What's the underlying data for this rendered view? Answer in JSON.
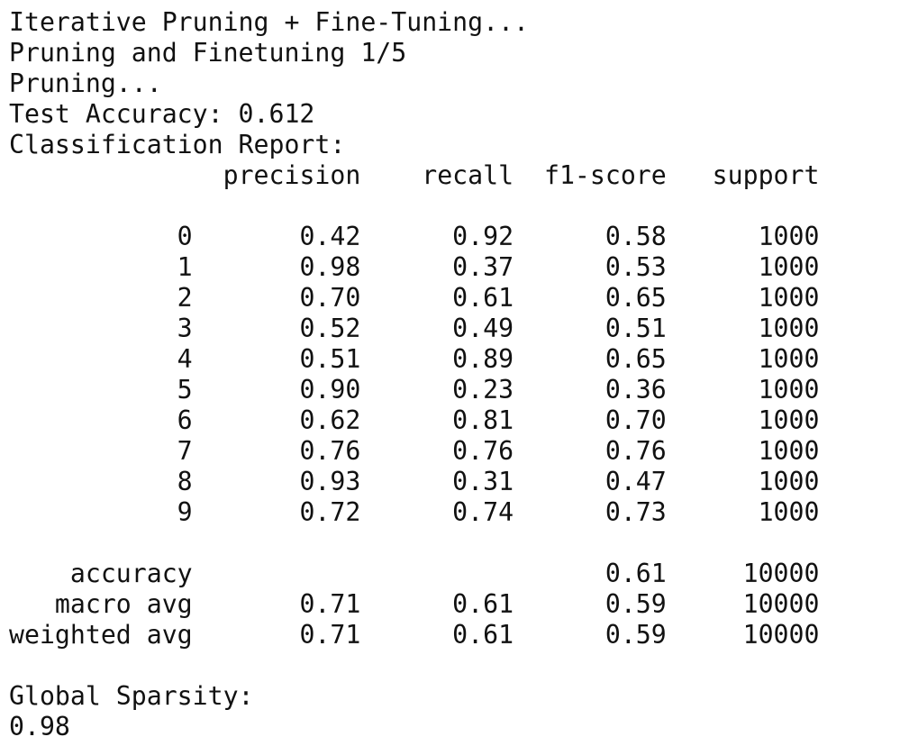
{
  "output": {
    "truncated_previous": "...",
    "header_lines": [
      "Iterative Pruning + Fine-Tuning...",
      "Pruning and Finetuning 1/5",
      "Pruning...",
      "Test Accuracy: 0.612",
      "Classification Report:"
    ],
    "report": {
      "columns": [
        "precision",
        "recall",
        "f1-score",
        "support"
      ],
      "class_rows": [
        {
          "label": "0",
          "precision": "0.42",
          "recall": "0.92",
          "f1": "0.58",
          "support": "1000"
        },
        {
          "label": "1",
          "precision": "0.98",
          "recall": "0.37",
          "f1": "0.53",
          "support": "1000"
        },
        {
          "label": "2",
          "precision": "0.70",
          "recall": "0.61",
          "f1": "0.65",
          "support": "1000"
        },
        {
          "label": "3",
          "precision": "0.52",
          "recall": "0.49",
          "f1": "0.51",
          "support": "1000"
        },
        {
          "label": "4",
          "precision": "0.51",
          "recall": "0.89",
          "f1": "0.65",
          "support": "1000"
        },
        {
          "label": "5",
          "precision": "0.90",
          "recall": "0.23",
          "f1": "0.36",
          "support": "1000"
        },
        {
          "label": "6",
          "precision": "0.62",
          "recall": "0.81",
          "f1": "0.70",
          "support": "1000"
        },
        {
          "label": "7",
          "precision": "0.76",
          "recall": "0.76",
          "f1": "0.76",
          "support": "1000"
        },
        {
          "label": "8",
          "precision": "0.93",
          "recall": "0.31",
          "f1": "0.47",
          "support": "1000"
        },
        {
          "label": "9",
          "precision": "0.72",
          "recall": "0.74",
          "f1": "0.73",
          "support": "1000"
        }
      ],
      "summary_rows": [
        {
          "label": "accuracy",
          "precision": "",
          "recall": "",
          "f1": "0.61",
          "support": "10000"
        },
        {
          "label": "macro avg",
          "precision": "0.71",
          "recall": "0.61",
          "f1": "0.59",
          "support": "10000"
        },
        {
          "label": "weighted avg",
          "precision": "0.71",
          "recall": "0.61",
          "f1": "0.59",
          "support": "10000"
        }
      ]
    },
    "sparsity_label": "Global Sparsity:",
    "sparsity_value": "0.98"
  }
}
